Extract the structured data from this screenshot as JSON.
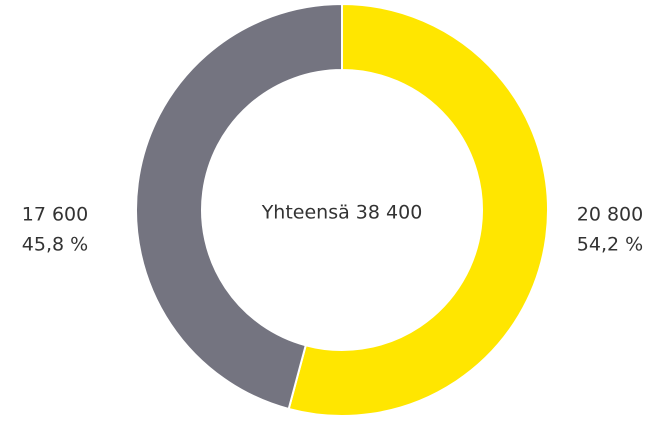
{
  "chart_data": {
    "type": "donut",
    "center_label": "Yhteensä 38 400",
    "categories": [
      null,
      null
    ],
    "values": [
      20800,
      17600
    ],
    "value_labels": [
      "20 800",
      "17 600"
    ],
    "percentages": [
      54.2,
      45.8
    ],
    "percentage_labels": [
      "54,2 %",
      "45,8 %"
    ],
    "colors": [
      "#ffe600",
      "#747480"
    ]
  }
}
